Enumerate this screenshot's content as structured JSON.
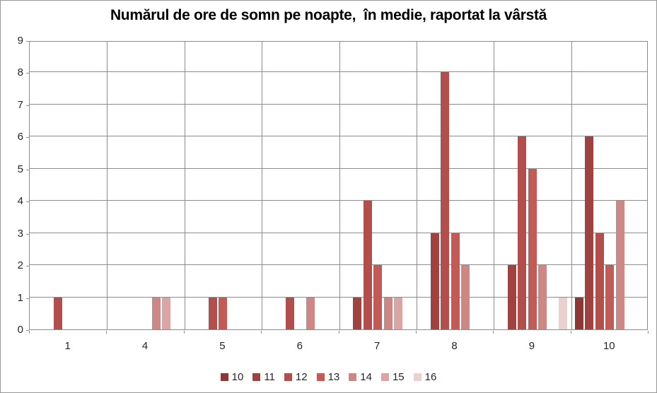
{
  "chart_data": {
    "type": "bar",
    "title": "Numărul de ore de somn pe noapte,  în medie, raportat la vârstă",
    "categories": [
      "1",
      "4",
      "5",
      "6",
      "7",
      "8",
      "9",
      "10"
    ],
    "series": [
      {
        "name": "10",
        "color": "#8C3836",
        "values": [
          0,
          0,
          0,
          0,
          0,
          0,
          0,
          1
        ]
      },
      {
        "name": "11",
        "color": "#A04240",
        "values": [
          0,
          0,
          0,
          0,
          1,
          3,
          2,
          6
        ]
      },
      {
        "name": "12",
        "color": "#B24E4B",
        "values": [
          1,
          0,
          1,
          1,
          4,
          8,
          6,
          3
        ]
      },
      {
        "name": "13",
        "color": "#C05B58",
        "values": [
          0,
          0,
          1,
          0,
          2,
          3,
          5,
          2
        ]
      },
      {
        "name": "14",
        "color": "#CD8886",
        "values": [
          0,
          1,
          0,
          1,
          1,
          2,
          2,
          4
        ]
      },
      {
        "name": "15",
        "color": "#DAA5A4",
        "values": [
          0,
          1,
          0,
          0,
          1,
          0,
          0,
          0
        ]
      },
      {
        "name": "16",
        "color": "#EBD0D0",
        "values": [
          0,
          0,
          0,
          0,
          0,
          0,
          1,
          0
        ]
      }
    ],
    "xlabel": "",
    "ylabel": "",
    "y_ticks": [
      0,
      1,
      2,
      3,
      4,
      5,
      6,
      7,
      8,
      9
    ],
    "ylim": [
      0,
      9
    ],
    "grid": true,
    "legend_position": "bottom",
    "gridline_color": "#8C8C8C",
    "text_color": "#262626"
  }
}
